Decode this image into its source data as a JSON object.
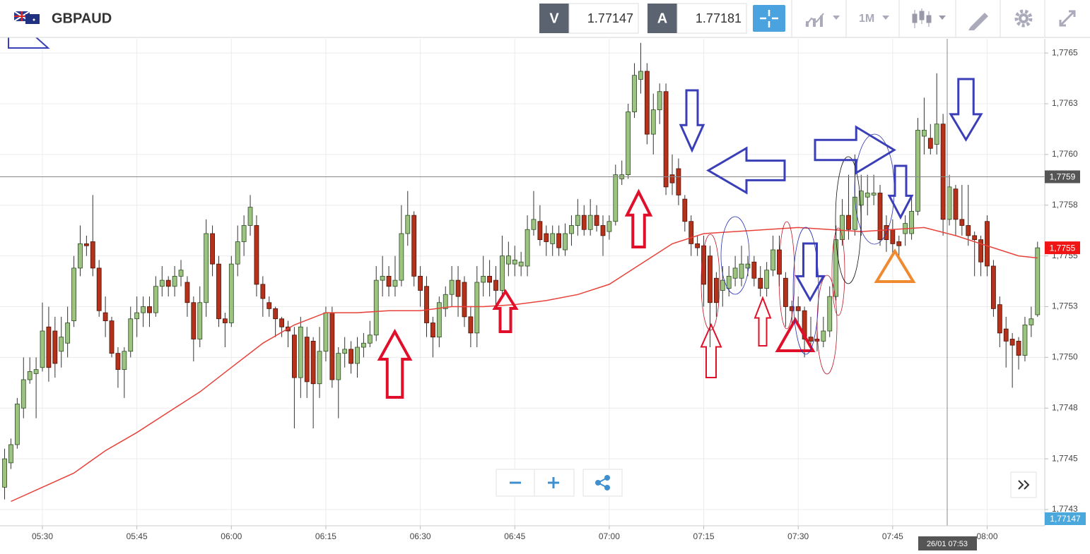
{
  "toolbar": {
    "symbol": "GBPAUD",
    "bid_tag": "V",
    "bid": "1.77147",
    "ask_tag": "A",
    "ask": "1.77181",
    "period": "1M"
  },
  "chart_data": {
    "type": "candlestick",
    "up_color": "#9cc480",
    "down_color": "#b5311a",
    "x": [
      "05:24",
      "05:25",
      "05:26",
      "05:27",
      "05:28",
      "05:29",
      "05:30",
      "05:31",
      "05:32",
      "05:33",
      "05:34",
      "05:35",
      "05:36",
      "05:37",
      "05:38",
      "05:39",
      "05:40",
      "05:41",
      "05:42",
      "05:43",
      "05:44",
      "05:45",
      "05:46",
      "05:47",
      "05:48",
      "05:49",
      "05:50",
      "05:51",
      "05:52",
      "05:53",
      "05:54",
      "05:55",
      "05:56",
      "05:57",
      "05:58",
      "05:59",
      "06:00",
      "06:01",
      "06:02",
      "06:03",
      "06:04",
      "06:05",
      "06:06",
      "06:07",
      "06:08",
      "06:09",
      "06:10",
      "06:11",
      "06:12",
      "06:13",
      "06:14",
      "06:15",
      "06:16",
      "06:17",
      "06:18",
      "06:19",
      "06:20",
      "06:21",
      "06:22",
      "06:23",
      "06:24",
      "06:25",
      "06:26",
      "06:27",
      "06:28",
      "06:29",
      "06:30",
      "06:31",
      "06:32",
      "06:33",
      "06:34",
      "06:35",
      "06:36",
      "06:37",
      "06:38",
      "06:39",
      "06:40",
      "06:41",
      "06:42",
      "06:43",
      "06:44",
      "06:45",
      "06:46",
      "06:47",
      "06:48",
      "06:49",
      "06:50",
      "06:51",
      "06:52",
      "06:53",
      "06:54",
      "06:55",
      "06:56",
      "06:57",
      "06:58",
      "06:59",
      "07:00",
      "07:01",
      "07:02",
      "07:03",
      "07:04",
      "07:05",
      "07:06",
      "07:07",
      "07:08",
      "07:09",
      "07:10",
      "07:11",
      "07:12",
      "07:13",
      "07:14",
      "07:15",
      "07:16",
      "07:17",
      "07:18",
      "07:19",
      "07:20",
      "07:21",
      "07:22",
      "07:23",
      "07:24",
      "07:25",
      "07:26",
      "07:27",
      "07:28",
      "07:29",
      "07:30",
      "07:31",
      "07:32",
      "07:33",
      "07:34",
      "07:35",
      "07:36",
      "07:37",
      "07:38",
      "07:39",
      "07:40",
      "07:41",
      "07:42",
      "07:43",
      "07:44",
      "07:45",
      "07:46",
      "07:47",
      "07:48",
      "07:49",
      "07:50",
      "07:51",
      "07:52",
      "07:53",
      "07:54",
      "07:55",
      "07:56",
      "07:57",
      "07:58",
      "07:59",
      "08:00",
      "08:01",
      "08:02",
      "08:03",
      "08:04",
      "08:05",
      "08:06",
      "08:07",
      "08:08"
    ],
    "open": [
      1.77436,
      1.77448,
      1.77457,
      1.77475,
      1.77489,
      1.77492,
      1.77495,
      1.77515,
      1.77513,
      1.77503,
      1.77507,
      1.77518,
      1.77544,
      1.77556,
      1.77557,
      1.77544,
      1.77522,
      1.77518,
      1.77502,
      1.77494,
      1.77503,
      1.77519,
      1.77522,
      1.77525,
      1.77522,
      1.77535,
      1.77538,
      1.77535,
      1.7754,
      1.77537,
      1.77527,
      1.77509,
      1.77527,
      1.77561,
      1.77546,
      1.77519,
      1.77517,
      1.77546,
      1.77557,
      1.77565,
      1.77565,
      1.77536,
      1.77527,
      1.77524,
      1.77519,
      1.77515,
      1.77511,
      1.7749,
      1.7751,
      1.77508,
      1.77487,
      1.77503,
      1.77522,
      1.77489,
      1.77502,
      1.77504,
      1.77497,
      1.77505,
      1.77507,
      1.77511,
      1.77538,
      1.7754,
      1.77535,
      1.77538,
      1.77561,
      1.7757,
      1.7754,
      1.77535,
      1.77517,
      1.7751,
      1.77524,
      1.77531,
      1.77538,
      1.77537,
      1.7752,
      1.77512,
      1.77537,
      1.7754,
      1.77538,
      1.77533,
      1.77546,
      1.77546,
      1.77545,
      1.77545,
      1.77563,
      1.77567,
      1.77561,
      1.77556,
      1.77561,
      1.77553,
      1.77561,
      1.77565,
      1.7757,
      1.77563,
      1.7757,
      1.77565,
      1.77562,
      1.77567,
      1.77588,
      1.7759,
      1.77621,
      1.77637,
      1.77641,
      1.7761,
      1.77622,
      1.77631,
      1.7759,
      1.77593,
      1.77578,
      1.77567,
      1.77556,
      1.77555,
      1.7755,
      1.77539,
      1.77533,
      1.77534,
      1.77539,
      1.77539,
      1.77544,
      1.77547,
      1.77539,
      1.77534,
      1.77543,
      1.77553,
      1.77539,
      1.77525,
      1.77525,
      1.77523,
      1.7751,
      1.77509,
      1.77508,
      1.77513,
      1.7753,
      1.77558,
      1.7757,
      1.77563,
      1.77575,
      1.77579,
      1.7758,
      1.77581,
      1.77565,
      1.77563,
      1.77557,
      1.77561,
      1.77561,
      1.77572,
      1.77609,
      1.77608,
      1.77605,
      1.77615,
      1.77568,
      1.77583,
      1.77568,
      1.77565,
      1.7756,
      1.77558,
      1.77567,
      1.77545,
      1.77526,
      1.77514,
      1.77509,
      1.77508,
      1.77501,
      1.77516,
      1.77521
    ],
    "high": [
      1.77455,
      1.7746,
      1.7748,
      1.775,
      1.775,
      1.775,
      1.77527,
      1.77525,
      1.7752,
      1.7752,
      1.77525,
      1.7755,
      1.77565,
      1.7756,
      1.7758,
      1.77548,
      1.7753,
      1.7752,
      1.77505,
      1.77505,
      1.77525,
      1.7753,
      1.7753,
      1.7753,
      1.7754,
      1.77545,
      1.7754,
      1.77545,
      1.77548,
      1.7754,
      1.7753,
      1.77535,
      1.77568,
      1.77565,
      1.7755,
      1.77522,
      1.7755,
      1.77565,
      1.7757,
      1.7758,
      1.7757,
      1.7754,
      1.7753,
      1.77525,
      1.7752,
      1.77518,
      1.77515,
      1.7752,
      1.77515,
      1.7751,
      1.77515,
      1.77525,
      1.77525,
      1.77505,
      1.7751,
      1.77508,
      1.7751,
      1.77512,
      1.77518,
      1.77545,
      1.7755,
      1.77545,
      1.7755,
      1.77575,
      1.77582,
      1.77572,
      1.77545,
      1.7754,
      1.7752,
      1.7753,
      1.77535,
      1.77545,
      1.77545,
      1.7754,
      1.77525,
      1.77545,
      1.7755,
      1.77548,
      1.77545,
      1.7756,
      1.77557,
      1.77555,
      1.77552,
      1.7757,
      1.77582,
      1.77575,
      1.77565,
      1.77565,
      1.77565,
      1.77566,
      1.7757,
      1.77578,
      1.77575,
      1.77578,
      1.77575,
      1.7757,
      1.7757,
      1.77595,
      1.77597,
      1.77625,
      1.77645,
      1.77655,
      1.77645,
      1.7763,
      1.77635,
      1.77635,
      1.776,
      1.77598,
      1.7758,
      1.7757,
      1.7756,
      1.7756,
      1.77555,
      1.77542,
      1.77545,
      1.77545,
      1.7755,
      1.77555,
      1.7755,
      1.7755,
      1.77545,
      1.77547,
      1.7756,
      1.7756,
      1.77542,
      1.77528,
      1.7753,
      1.77525,
      1.7752,
      1.77515,
      1.7752,
      1.77535,
      1.77565,
      1.77578,
      1.7759,
      1.776,
      1.7759,
      1.7759,
      1.7759,
      1.77585,
      1.7757,
      1.77568,
      1.7756,
      1.7757,
      1.7758,
      1.77618,
      1.77628,
      1.77615,
      1.7764,
      1.7762,
      1.7759,
      1.77585,
      1.77585,
      1.77585,
      1.77562,
      1.7756,
      1.7757,
      1.77548,
      1.7753,
      1.7752,
      1.77512,
      1.7751,
      1.7752,
      1.77525,
      1.77557
    ],
    "low": [
      1.7743,
      1.77445,
      1.77455,
      1.7747,
      1.77487,
      1.7747,
      1.77493,
      1.77488,
      1.7749,
      1.77495,
      1.775,
      1.77515,
      1.7754,
      1.7755,
      1.7754,
      1.7752,
      1.7751,
      1.775,
      1.77485,
      1.7748,
      1.775,
      1.7751,
      1.77515,
      1.77515,
      1.7752,
      1.7753,
      1.7753,
      1.7753,
      1.77535,
      1.7752,
      1.77498,
      1.77505,
      1.7752,
      1.7754,
      1.77515,
      1.77505,
      1.77515,
      1.7754,
      1.7755,
      1.7756,
      1.7753,
      1.7752,
      1.7752,
      1.7751,
      1.7751,
      1.77505,
      1.77465,
      1.7748,
      1.7748,
      1.77465,
      1.7748,
      1.77498,
      1.77485,
      1.7747,
      1.77495,
      1.77492,
      1.7749,
      1.775,
      1.77505,
      1.77508,
      1.7753,
      1.7753,
      1.7753,
      1.77535,
      1.77555,
      1.77535,
      1.77525,
      1.7751,
      1.775,
      1.77505,
      1.7752,
      1.77525,
      1.7752,
      1.77515,
      1.77505,
      1.77505,
      1.7753,
      1.7753,
      1.77525,
      1.7753,
      1.7754,
      1.7754,
      1.7754,
      1.7754,
      1.7756,
      1.77555,
      1.7755,
      1.7755,
      1.7755,
      1.7755,
      1.77555,
      1.7756,
      1.7756,
      1.7756,
      1.77562,
      1.7755,
      1.77558,
      1.77565,
      1.77585,
      1.77588,
      1.77618,
      1.7763,
      1.77605,
      1.776,
      1.77615,
      1.7758,
      1.7758,
      1.77575,
      1.77562,
      1.7755,
      1.7755,
      1.77525,
      1.77505,
      1.7752,
      1.77525,
      1.7753,
      1.77535,
      1.77535,
      1.7754,
      1.77535,
      1.7753,
      1.7753,
      1.7754,
      1.77535,
      1.77515,
      1.77515,
      1.77515,
      1.775,
      1.77505,
      1.77503,
      1.77505,
      1.7751,
      1.77528,
      1.77555,
      1.77558,
      1.7756,
      1.7756,
      1.7757,
      1.77575,
      1.77555,
      1.77552,
      1.7755,
      1.7755,
      1.77555,
      1.77558,
      1.7757,
      1.776,
      1.776,
      1.776,
      1.7756,
      1.77565,
      1.7756,
      1.7756,
      1.77555,
      1.7754,
      1.7754,
      1.7754,
      1.7752,
      1.77505,
      1.77495,
      1.77485,
      1.77494,
      1.77498,
      1.7751,
      1.7752
    ],
    "close": [
      1.7745,
      1.77457,
      1.77477,
      1.77489,
      1.77493,
      1.77494,
      1.77513,
      1.77495,
      1.77497,
      1.7751,
      1.77517,
      1.77544,
      1.77556,
      1.77555,
      1.77544,
      1.77523,
      1.77518,
      1.77502,
      1.77494,
      1.77503,
      1.77519,
      1.77522,
      1.77525,
      1.77522,
      1.77535,
      1.77538,
      1.77535,
      1.7754,
      1.77543,
      1.77527,
      1.77509,
      1.77527,
      1.77561,
      1.77546,
      1.77519,
      1.77517,
      1.77546,
      1.77557,
      1.77565,
      1.77574,
      1.77536,
      1.77529,
      1.77524,
      1.77519,
      1.77515,
      1.77513,
      1.7749,
      1.77515,
      1.77488,
      1.77487,
      1.77503,
      1.77522,
      1.77489,
      1.77502,
      1.77504,
      1.77497,
      1.77505,
      1.77507,
      1.77511,
      1.77538,
      1.7754,
      1.77535,
      1.77538,
      1.77561,
      1.7757,
      1.7754,
      1.77533,
      1.77517,
      1.7751,
      1.77527,
      1.77531,
      1.77538,
      1.7753,
      1.7752,
      1.77512,
      1.77537,
      1.7754,
      1.77537,
      1.77533,
      1.7755,
      1.7755,
      1.77548,
      1.77547,
      1.77563,
      1.77568,
      1.77558,
      1.77557,
      1.77561,
      1.77554,
      1.77561,
      1.77565,
      1.7757,
      1.77563,
      1.7757,
      1.77565,
      1.7756,
      1.77567,
      1.7759,
      1.7759,
      1.77621,
      1.77639,
      1.77641,
      1.7761,
      1.77622,
      1.77631,
      1.77584,
      1.77586,
      1.7758,
      1.77567,
      1.77556,
      1.77554,
      1.77536,
      1.77527,
      1.77527,
      1.77538,
      1.7754,
      1.77544,
      1.77546,
      1.77546,
      1.77539,
      1.77534,
      1.77543,
      1.77553,
      1.77541,
      1.77525,
      1.77523,
      1.77523,
      1.77509,
      1.77508,
      1.77508,
      1.77513,
      1.7753,
      1.77558,
      1.7757,
      1.77563,
      1.77579,
      1.77582,
      1.77581,
      1.77581,
      1.77558,
      1.77558,
      1.77556,
      1.77555,
      1.77566,
      1.77572,
      1.77612,
      1.77612,
      1.77603,
      1.77615,
      1.77568,
      1.77584,
      1.77568,
      1.77565,
      1.7756,
      1.77558,
      1.77547,
      1.77545,
      1.77524,
      1.77512,
      1.77508,
      1.77506,
      1.77501,
      1.77516,
      1.77519,
      1.77554
    ],
    "moving_average": {
      "color": "#e8413a",
      "x": [
        "05:25",
        "05:30",
        "05:35",
        "05:40",
        "05:45",
        "05:50",
        "05:55",
        "06:00",
        "06:05",
        "06:10",
        "06:15",
        "06:20",
        "06:25",
        "06:30",
        "06:35",
        "06:40",
        "06:45",
        "06:50",
        "06:55",
        "07:00",
        "07:05",
        "07:10",
        "07:15",
        "07:20",
        "07:25",
        "07:30",
        "07:35",
        "07:40",
        "07:45",
        "07:50",
        "07:55",
        "08:00",
        "08:05",
        "08:08"
      ],
      "values": [
        1.77429,
        1.77436,
        1.77443,
        1.77454,
        1.77463,
        1.77473,
        1.77483,
        1.77495,
        1.77507,
        1.77516,
        1.77522,
        1.77522,
        1.77523,
        1.77523,
        1.77525,
        1.77525,
        1.77526,
        1.77528,
        1.77531,
        1.77536,
        1.77546,
        1.77556,
        1.77561,
        1.77562,
        1.77563,
        1.77564,
        1.77563,
        1.77562,
        1.77563,
        1.77564,
        1.7756,
        1.77555,
        1.7755,
        1.77549
      ]
    },
    "ylim": [
      1.77417,
      1.77657
    ],
    "yticks": [
      {
        "value": 1.7765,
        "label": "1,7765"
      },
      {
        "value": 1.77625,
        "label": "1,7763"
      },
      {
        "value": 1.776,
        "label": "1,7760"
      },
      {
        "value": 1.77575,
        "label": "1,7758"
      },
      {
        "value": 1.7755,
        "label": "1,7755"
      },
      {
        "value": 1.77525,
        "label": "1,7753"
      },
      {
        "value": 1.775,
        "label": "1,7750"
      },
      {
        "value": 1.77475,
        "label": "1,7748"
      },
      {
        "value": 1.7745,
        "label": "1,7745"
      },
      {
        "value": 1.77425,
        "label": "1,7743"
      }
    ],
    "xticks": [
      "05:30",
      "05:45",
      "06:00",
      "06:15",
      "06:30",
      "06:45",
      "07:00",
      "07:15",
      "07:30",
      "07:45",
      "08:00"
    ],
    "grid": true,
    "crosshair_price": {
      "value": 1.77589,
      "label": "1,7759"
    },
    "crosshair_time": "26/01 07:53",
    "last_price": {
      "value": 1.77554,
      "label": "1,7755"
    },
    "bid_label": "1,77147"
  }
}
